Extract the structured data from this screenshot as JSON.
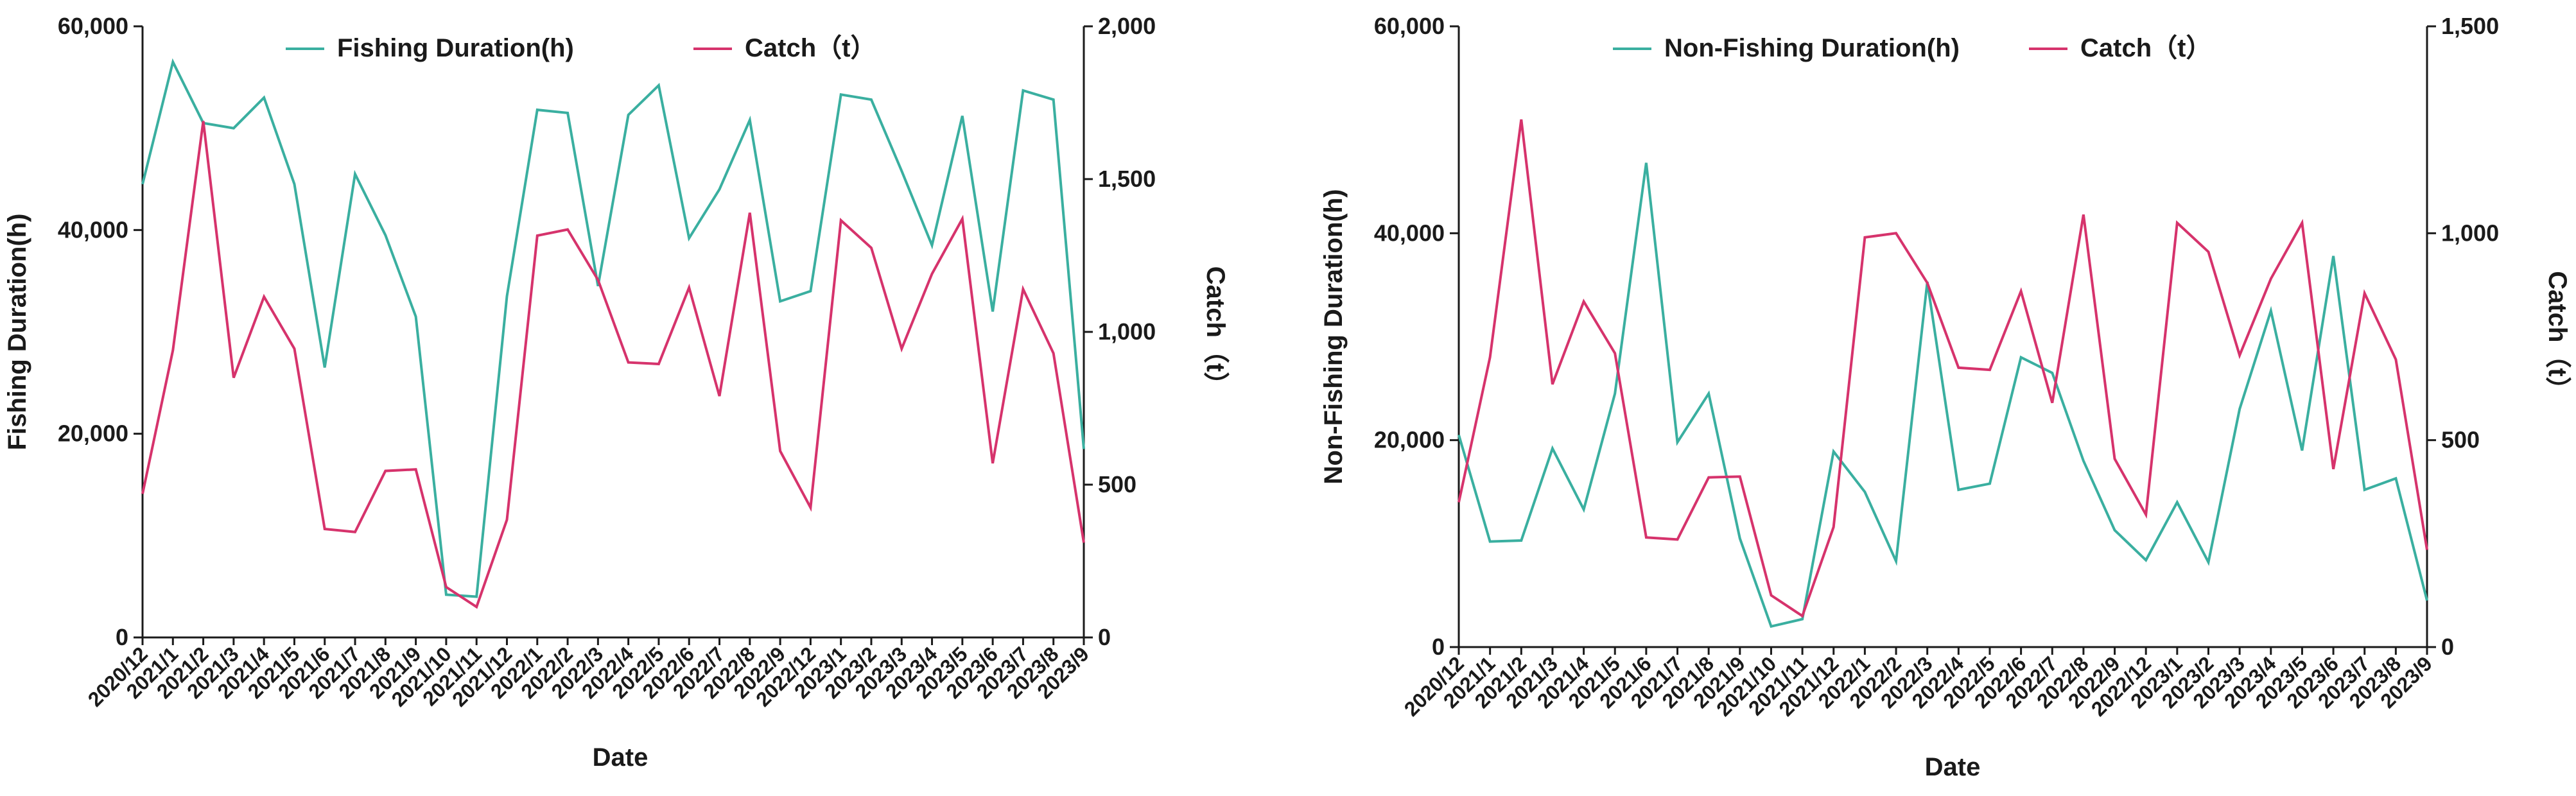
{
  "colors": {
    "teal": "#3aafa0",
    "pink": "#d6336c",
    "axis": "#1a1a1a"
  },
  "dates": [
    "2020/12",
    "2021/1",
    "2021/2",
    "2021/3",
    "2021/4",
    "2021/5",
    "2021/6",
    "2021/7",
    "2021/8",
    "2021/9",
    "2021/10",
    "2021/11",
    "2021/12",
    "2022/1",
    "2022/2",
    "2022/3",
    "2022/4",
    "2022/5",
    "2022/6",
    "2022/7",
    "2022/8",
    "2022/9",
    "2022/12",
    "2023/1",
    "2023/2",
    "2023/3",
    "2023/4",
    "2023/5",
    "2023/6",
    "2023/7",
    "2023/8",
    "2023/9"
  ],
  "chart_data": [
    {
      "type": "line",
      "xlabel": "Date",
      "ylabel_left": "Fishing Duration(h)",
      "ylabel_right": "Catch（t）",
      "ylim_left": [
        0,
        60000
      ],
      "ylim_right": [
        0,
        2000
      ],
      "yticks_left": [
        "0",
        "20,000",
        "40,000",
        "60,000"
      ],
      "yticks_right": [
        "0",
        "500",
        "1,000",
        "1,500",
        "2,000"
      ],
      "series": [
        {
          "name": "Fishing Duration(h)",
          "axis": "left",
          "color": "#3aafa0",
          "values": [
            44500,
            56500,
            50500,
            50000,
            53000,
            44500,
            26500,
            45500,
            39500,
            31500,
            4200,
            4000,
            33500,
            51800,
            51500,
            34500,
            51300,
            54200,
            39200,
            44000,
            50800,
            33000,
            34000,
            53300,
            52800,
            45800,
            38500,
            51200,
            32000,
            53700,
            52800,
            18500
          ]
        },
        {
          "name": "Catch（t）",
          "axis": "right",
          "color": "#d6336c",
          "values": [
            470,
            940,
            1690,
            850,
            1115,
            945,
            355,
            345,
            545,
            550,
            165,
            100,
            385,
            1315,
            1335,
            1170,
            900,
            895,
            1145,
            790,
            1390,
            610,
            425,
            1365,
            1275,
            945,
            1190,
            1370,
            570,
            1140,
            930,
            310
          ]
        }
      ]
    },
    {
      "type": "line",
      "xlabel": "Date",
      "ylabel_left": "Non-Fishing Duration(h)",
      "ylabel_right": "Catch（t）",
      "ylim_left": [
        0,
        60000
      ],
      "ylim_right": [
        0,
        1500
      ],
      "yticks_left": [
        "0",
        "20,000",
        "40,000",
        "60,000"
      ],
      "yticks_right": [
        "0",
        "500",
        "1,000",
        "1,500"
      ],
      "series": [
        {
          "name": "Non-Fishing Duration(h)",
          "axis": "left",
          "color": "#3aafa0",
          "values": [
            20500,
            10200,
            10300,
            19200,
            13300,
            24500,
            46800,
            19800,
            24500,
            10500,
            2000,
            2700,
            18900,
            15000,
            8300,
            35300,
            15200,
            15800,
            28000,
            26500,
            18000,
            11300,
            8400,
            14000,
            8200,
            23000,
            32500,
            19000,
            37800,
            15200,
            16300,
            4500
          ]
        },
        {
          "name": "Catch（t）",
          "axis": "right",
          "color": "#d6336c",
          "values": [
            350,
            700,
            1275,
            635,
            835,
            710,
            265,
            260,
            410,
            412,
            125,
            75,
            290,
            990,
            1000,
            880,
            675,
            670,
            860,
            590,
            1045,
            455,
            320,
            1025,
            955,
            705,
            890,
            1025,
            430,
            855,
            695,
            235
          ]
        }
      ]
    }
  ]
}
